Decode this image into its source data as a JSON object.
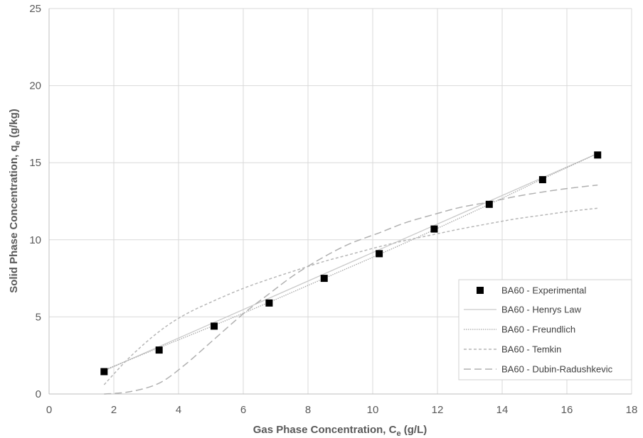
{
  "chart_data": {
    "type": "scatter",
    "title": "",
    "xlabel": {
      "main": "Gas Phase Concentration, C",
      "sub": "e",
      "tail": " (g/L)"
    },
    "ylabel": {
      "main": "Solid Phase Concentration, q",
      "sub": "e",
      "tail": " (g/kg)"
    },
    "xlim": [
      0,
      18
    ],
    "ylim": [
      0,
      25
    ],
    "x_ticks": [
      0,
      2,
      4,
      6,
      8,
      10,
      12,
      14,
      16,
      18
    ],
    "y_ticks": [
      0,
      5,
      10,
      15,
      20,
      25
    ],
    "grid": true,
    "legend_position": "bottom-right",
    "colors": {
      "marker": "#000000",
      "henry": "#c9c9c9",
      "freundlich": "#a6a6a6",
      "temkin": "#b7b7b7",
      "dubin": "#b0b0b0",
      "grid": "#d9d9d9",
      "axis": "#bfbfbf"
    },
    "series": [
      {
        "name": "BA60 - Experimental",
        "style": "marker",
        "x": [
          1.7,
          3.4,
          5.1,
          6.8,
          8.5,
          10.2,
          11.9,
          13.6,
          15.25,
          16.95
        ],
        "y": [
          1.45,
          2.85,
          4.4,
          5.9,
          7.5,
          9.1,
          10.7,
          12.3,
          13.9,
          15.5
        ]
      },
      {
        "name": "BA60 - Henrys Law",
        "style": "henry",
        "x": [
          1.7,
          16.95
        ],
        "y": [
          1.5,
          15.6
        ]
      },
      {
        "name": "BA60 - Freundlich",
        "style": "freundlich",
        "x": [
          1.7,
          3.4,
          5.1,
          6.8,
          8.5,
          10.2,
          11.9,
          13.6,
          15.25,
          16.95
        ],
        "y": [
          1.55,
          3.0,
          4.45,
          5.95,
          7.5,
          9.05,
          10.65,
          12.3,
          13.95,
          15.6
        ]
      },
      {
        "name": "BA60 - Temkin",
        "style": "temkin",
        "x": [
          1.7,
          2.5,
          3.4,
          4.2,
          5.1,
          6.0,
          6.8,
          7.6,
          8.5,
          9.3,
          10.2,
          11.0,
          11.9,
          12.7,
          13.6,
          14.4,
          15.25,
          16.1,
          16.95
        ],
        "y": [
          0.6,
          2.4,
          4.05,
          5.15,
          6.05,
          6.85,
          7.45,
          8.0,
          8.6,
          9.05,
          9.55,
          9.95,
          10.35,
          10.7,
          11.05,
          11.35,
          11.6,
          11.85,
          12.05
        ]
      },
      {
        "name": "BA60 - Dubin-Radushkevic",
        "style": "dubin",
        "x": [
          1.7,
          2.5,
          3.4,
          4.2,
          5.1,
          6.0,
          6.8,
          7.6,
          8.5,
          9.3,
          10.2,
          11.0,
          11.9,
          12.7,
          13.6,
          14.4,
          15.25,
          16.1,
          16.95
        ],
        "y": [
          0.0,
          0.15,
          0.7,
          1.9,
          3.55,
          5.2,
          6.5,
          7.75,
          8.9,
          9.75,
          10.45,
          11.1,
          11.65,
          12.1,
          12.45,
          12.8,
          13.1,
          13.35,
          13.55
        ]
      }
    ]
  }
}
